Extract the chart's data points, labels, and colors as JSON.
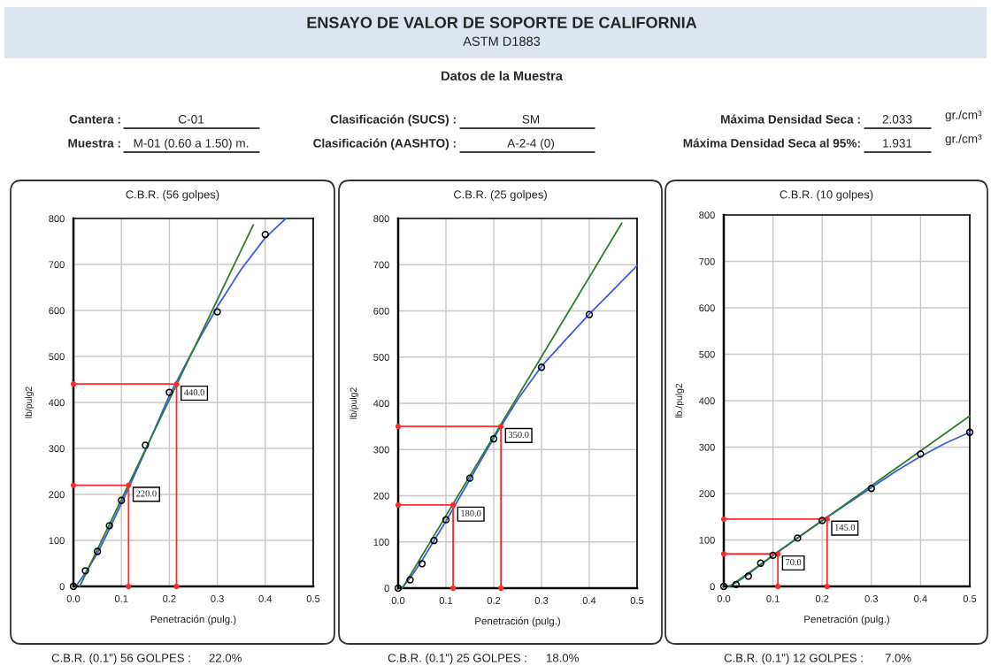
{
  "chart_data": [
    {
      "type": "other",
      "title": "ENSAYO DE VALOR DE SOPORTE DE CALIFORNIA",
      "subtitle": "ASTM D1883",
      "annotations": [
        "Datos de la Muestra",
        "Cantera :",
        "C-01",
        "Muestra :",
        "M-01 (0.60 a 1.50) m.",
        "Clasificación (SUCS) :",
        "SM",
        "Clasificación (AASHTO) :",
        "A-2-4 (0)",
        "Máxima Densidad Seca :",
        "2.033",
        "gr./cm³",
        "Máxima Densidad Seca al 95%:",
        "1.931",
        "gr./cm³"
      ]
    },
    {
      "type": "line",
      "title": "C.B.R. (56 golpes)",
      "xlabel": "Penetración (pulg.)",
      "ylabel": "lb/pulg2",
      "xlim": [
        0,
        0.5
      ],
      "ylim": [
        0,
        800
      ],
      "xticks": [
        {
          "value": 0,
          "label": "0.0"
        },
        {
          "value": 0.1,
          "label": "0.1"
        },
        {
          "value": 0.2,
          "label": "0.2"
        },
        {
          "value": 0.3,
          "label": "0.3"
        },
        {
          "value": 0.4,
          "label": "0.4"
        },
        {
          "value": 0.5,
          "label": "0.5"
        }
      ],
      "yticks": [
        0,
        100,
        200,
        300,
        400,
        500,
        600,
        700,
        800
      ],
      "grid": true,
      "series": [
        {
          "type": "scatter",
          "marker": "circle",
          "color": "#000000",
          "x": [
            0,
            0.025,
            0.05,
            0.075,
            0.1,
            0.15,
            0.2,
            0.3,
            0.4
          ],
          "values": [
            0,
            34,
            76,
            132,
            187,
            307,
            422,
            597,
            765
          ]
        },
        {
          "type": "line",
          "color": "#3c5ce6",
          "x": [
            0.005,
            0.025,
            0.05,
            0.075,
            0.1,
            0.125,
            0.15,
            0.2,
            0.25,
            0.3,
            0.35,
            0.4,
            0.443
          ],
          "values": [
            0,
            30,
            72,
            125,
            180,
            237,
            295,
            415,
            515,
            608,
            690,
            758,
            800
          ]
        },
        {
          "type": "line",
          "color": "#2e7d32",
          "x": [
            0.013,
            0.375
          ],
          "values": [
            0,
            786
          ]
        },
        {
          "type": "line",
          "marker": "circle",
          "color": "#ff2a2a",
          "x": [
            0,
            0.115,
            0.115
          ],
          "values": [
            220,
            220,
            0
          ]
        },
        {
          "type": "line",
          "marker": "circle",
          "color": "#ff2a2a",
          "x": [
            0,
            0.215,
            0.215
          ],
          "values": [
            440,
            440,
            0
          ]
        }
      ],
      "annotations": [
        {
          "text": "440.0",
          "x": 0.215,
          "y": 440
        },
        {
          "text": "220.0",
          "x": 0.115,
          "y": 220
        },
        "C.B.R. (0.1\") 56 GOLPES :",
        "22.0%"
      ]
    },
    {
      "type": "line",
      "title": "C.B.R. (25 golpes)",
      "xlabel": "Penetración (pulg.)",
      "ylabel": "lb/pulg2",
      "xlim": [
        0,
        0.5
      ],
      "ylim": [
        0,
        800
      ],
      "xticks": [
        {
          "value": 0,
          "label": "0.0"
        },
        {
          "value": 0.1,
          "label": "0.1"
        },
        {
          "value": 0.2,
          "label": "0.2"
        },
        {
          "value": 0.3,
          "label": "0.3"
        },
        {
          "value": 0.4,
          "label": "0.4"
        },
        {
          "value": 0.5,
          "label": "0.5"
        }
      ],
      "yticks": [
        0,
        100,
        200,
        300,
        400,
        500,
        600,
        700,
        800
      ],
      "grid": true,
      "series": [
        {
          "type": "scatter",
          "marker": "circle",
          "color": "#000000",
          "x": [
            0,
            0.025,
            0.05,
            0.075,
            0.1,
            0.15,
            0.2,
            0.3,
            0.4
          ],
          "values": [
            0,
            18,
            53,
            103,
            148,
            238,
            323,
            478,
            592
          ]
        },
        {
          "type": "line",
          "color": "#3c5ce6",
          "x": [
            0.007,
            0.025,
            0.05,
            0.075,
            0.1,
            0.15,
            0.2,
            0.25,
            0.3,
            0.35,
            0.4,
            0.45,
            0.5
          ],
          "values": [
            0,
            22,
            60,
            103,
            145,
            235,
            325,
            408,
            480,
            537,
            593,
            645,
            698
          ]
        },
        {
          "type": "line",
          "color": "#2e7d32",
          "x": [
            0.009,
            0.468
          ],
          "values": [
            0,
            790
          ]
        },
        {
          "type": "line",
          "marker": "circle",
          "color": "#ff2a2a",
          "x": [
            0,
            0.115,
            0.115
          ],
          "values": [
            180,
            180,
            0
          ]
        },
        {
          "type": "line",
          "marker": "circle",
          "color": "#ff2a2a",
          "x": [
            0,
            0.215,
            0.215
          ],
          "values": [
            350,
            350,
            0
          ]
        }
      ],
      "annotations": [
        {
          "text": "350.0",
          "x": 0.215,
          "y": 350
        },
        {
          "text": "180.0",
          "x": 0.115,
          "y": 180
        },
        "C.B.R. (0.1\") 25 GOLPES :",
        "18.0%"
      ]
    },
    {
      "type": "line",
      "title": "C.B.R. (10 golpes)",
      "xlabel": "Penetración (pulg.)",
      "ylabel": "lb./pulg2",
      "xlim": [
        0,
        0.5
      ],
      "ylim": [
        0,
        800
      ],
      "xticks": [
        {
          "value": 0,
          "label": "0.0"
        },
        {
          "value": 0.1,
          "label": "0.1"
        },
        {
          "value": 0.2,
          "label": "0.2"
        },
        {
          "value": 0.3,
          "label": "0.3"
        },
        {
          "value": 0.4,
          "label": "0.4"
        },
        {
          "value": 0.5,
          "label": "0.5"
        }
      ],
      "yticks": [
        0,
        100,
        200,
        300,
        400,
        500,
        600,
        700,
        800
      ],
      "grid": true,
      "series": [
        {
          "type": "scatter",
          "marker": "circle",
          "color": "#000000",
          "x": [
            0,
            0.025,
            0.05,
            0.075,
            0.1,
            0.15,
            0.2,
            0.3,
            0.4,
            0.5
          ],
          "values": [
            0,
            4,
            22,
            50,
            67,
            104,
            142,
            211,
            285,
            332
          ]
        },
        {
          "type": "line",
          "color": "#3c5ce6",
          "x": [
            0.01,
            0.025,
            0.05,
            0.075,
            0.1,
            0.15,
            0.2,
            0.25,
            0.3,
            0.35,
            0.4,
            0.45,
            0.5
          ],
          "values": [
            0,
            8,
            26,
            47,
            67,
            105,
            142,
            177,
            213,
            248,
            280,
            308,
            332
          ]
        },
        {
          "type": "line",
          "color": "#2e7d32",
          "x": [
            0.012,
            0.5
          ],
          "values": [
            0,
            367
          ]
        },
        {
          "type": "line",
          "marker": "circle",
          "color": "#ff2a2a",
          "x": [
            0,
            0.11,
            0.11
          ],
          "values": [
            70,
            70,
            0
          ]
        },
        {
          "type": "line",
          "marker": "circle",
          "color": "#ff2a2a",
          "x": [
            0,
            0.21,
            0.21
          ],
          "values": [
            145,
            145,
            0
          ]
        }
      ],
      "annotations": [
        {
          "text": "145.0",
          "x": 0.21,
          "y": 145
        },
        {
          "text": "70.0",
          "x": 0.11,
          "y": 70
        },
        "C.B.R. (0.1\") 12 GOLPES :",
        "7.0%"
      ]
    }
  ]
}
